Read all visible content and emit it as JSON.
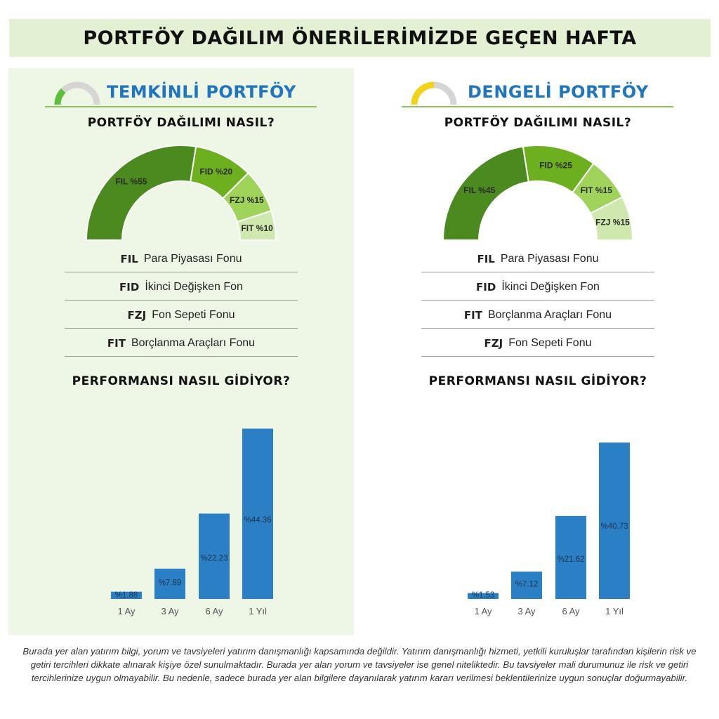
{
  "header": {
    "title": "PORTFÖY DAĞILIM ÖNERİLERİMİZDE GEÇEN HAFTA"
  },
  "panels": [
    {
      "name": "TEMKİNLİ PORTFÖY",
      "gauge_color": "#5bbf3a",
      "gauge_level": 0.25,
      "distribution_title": "PORTFÖY DAĞILIMI NASIL?",
      "performance_title": "PERFORMANSI NASIL GİDİYOR?",
      "legend": [
        {
          "code": "FIL",
          "label": "Para Piyasası Fonu"
        },
        {
          "code": "FID",
          "label": "İkinci Değişken Fon"
        },
        {
          "code": "FZJ",
          "label": "Fon Sepeti Fonu"
        },
        {
          "code": "FIT",
          "label": "Borçlanma Araçları Fonu"
        }
      ]
    },
    {
      "name": "DENGELİ PORTFÖY",
      "gauge_color": "#f2d21b",
      "gauge_level": 0.5,
      "distribution_title": "PORTFÖY DAĞILIMI NASIL?",
      "performance_title": "PERFORMANSI NASIL GİDİYOR?",
      "legend": [
        {
          "code": "FIL",
          "label": "Para Piyasası Fonu"
        },
        {
          "code": "FID",
          "label": "İkinci Değişken Fon"
        },
        {
          "code": "FIT",
          "label": "Borçlanma Araçları Fonu"
        },
        {
          "code": "FZJ",
          "label": "Fon Sepeti Fonu"
        }
      ]
    }
  ],
  "chart_data": [
    {
      "type": "pie",
      "variant": "half-donut",
      "panel": "TEMKİNLİ PORTFÖY",
      "slices": [
        {
          "label": "FIL %55",
          "value": 55,
          "color": "#4a8a1e"
        },
        {
          "label": "FID %20",
          "value": 20,
          "color": "#6cb020"
        },
        {
          "label": "FZJ %15",
          "value": 15,
          "color": "#9fd35a"
        },
        {
          "label": "FIT %10",
          "value": 10,
          "color": "#cfe8ad"
        }
      ]
    },
    {
      "type": "bar",
      "panel": "TEMKİNLİ PORTFÖY",
      "categories": [
        "1 Ay",
        "3 Ay",
        "6 Ay",
        "1 Yıl"
      ],
      "values": [
        1.88,
        7.89,
        22.23,
        44.36
      ],
      "labels": [
        "%1.88",
        "%7.89",
        "%22.23",
        "%44.36"
      ],
      "color": "#2a7fc5"
    },
    {
      "type": "pie",
      "variant": "half-donut",
      "panel": "DENGELİ PORTFÖY",
      "slices": [
        {
          "label": "FIL %45",
          "value": 45,
          "color": "#4a8a1e"
        },
        {
          "label": "FID %25",
          "value": 25,
          "color": "#6cb020"
        },
        {
          "label": "FIT %15",
          "value": 15,
          "color": "#9fd35a"
        },
        {
          "label": "FZJ %15",
          "value": 15,
          "color": "#cfe8ad"
        }
      ]
    },
    {
      "type": "bar",
      "panel": "DENGELİ PORTFÖY",
      "categories": [
        "1 Ay",
        "3 Ay",
        "6 Ay",
        "1 Yıl"
      ],
      "values": [
        1.53,
        7.12,
        21.62,
        40.73
      ],
      "labels": [
        "%1.53",
        "%7.12",
        "%21.62",
        "%40.73"
      ],
      "color": "#2a7fc5"
    }
  ],
  "footer": {
    "disclaimer": "Burada yer alan yatırım bilgi, yorum ve tavsiyeleri yatırım danışmanlığı kapsamında değildir. Yatırım danışmanlığı hizmeti, yetkili kuruluşlar tarafından kişilerin risk ve getiri tercihleri dikkate alınarak kişiye özel sunulmaktadır. Burada yer alan yorum ve tavsiyeler ise genel niteliktedir. Bu tavsiyeler mali durumunuz ile risk ve getiri tercihlerinize uygun olmayabilir. Bu nedenle, sadece burada yer alan bilgilere dayanılarak yatırım kararı verilmesi beklentilerinize uygun sonuçlar doğurmayabilir."
  }
}
